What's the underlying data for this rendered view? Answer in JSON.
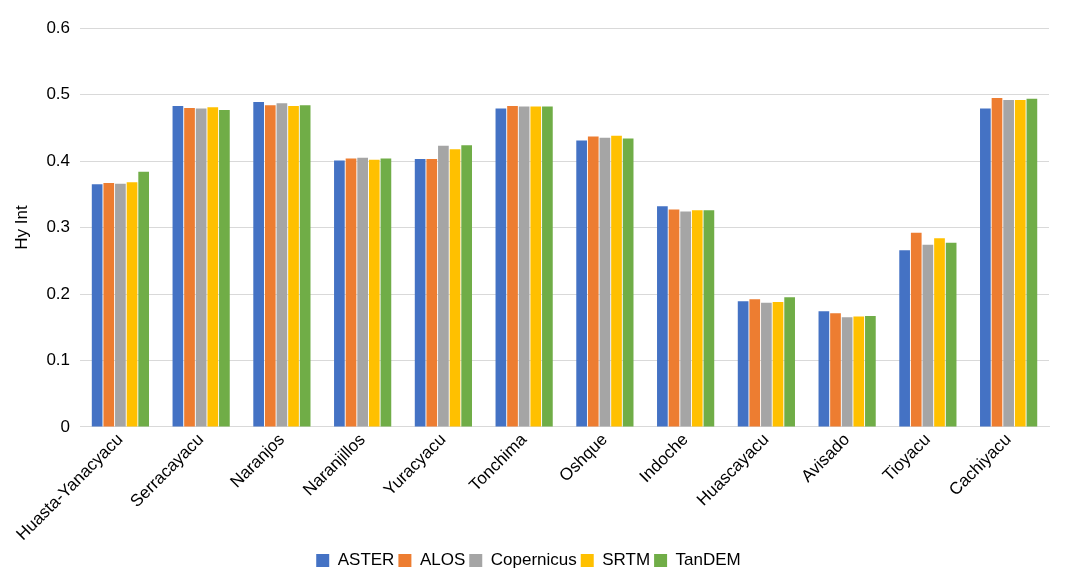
{
  "chart_data": {
    "type": "bar",
    "ylabel": "Hy Int",
    "categories": [
      "Huasta-Yanacyacu",
      "Serracayacu",
      "Naranjos",
      "Naranjillos",
      "Yuracyacu",
      "Tonchima",
      "Oshque",
      "Indoche",
      "Huascayacu",
      "Avisado",
      "Tioyacu",
      "Cachiyacu"
    ],
    "series": [
      {
        "name": "ASTER",
        "color": "#4472c4",
        "values": [
          0.365,
          0.483,
          0.489,
          0.401,
          0.403,
          0.479,
          0.431,
          0.332,
          0.189,
          0.174,
          0.266,
          0.479
        ]
      },
      {
        "name": "ALOS",
        "color": "#ed7d31",
        "values": [
          0.367,
          0.48,
          0.484,
          0.404,
          0.403,
          0.483,
          0.437,
          0.327,
          0.192,
          0.171,
          0.292,
          0.495
        ]
      },
      {
        "name": "Copernicus",
        "color": "#a5a5a5",
        "values": [
          0.366,
          0.479,
          0.487,
          0.405,
          0.423,
          0.482,
          0.435,
          0.324,
          0.187,
          0.165,
          0.274,
          0.492
        ]
      },
      {
        "name": "SRTM",
        "color": "#ffc000",
        "values": [
          0.368,
          0.481,
          0.483,
          0.402,
          0.418,
          0.482,
          0.438,
          0.326,
          0.188,
          0.166,
          0.284,
          0.492
        ]
      },
      {
        "name": "TanDEM",
        "color": "#70ad47",
        "values": [
          0.384,
          0.477,
          0.484,
          0.404,
          0.424,
          0.482,
          0.434,
          0.326,
          0.195,
          0.167,
          0.277,
          0.494
        ]
      }
    ],
    "ylim": [
      0,
      0.6
    ],
    "yticks": [
      0,
      0.1,
      0.2,
      0.3,
      0.4,
      0.5,
      0.6
    ],
    "grid": "y",
    "legend": "bottom"
  }
}
